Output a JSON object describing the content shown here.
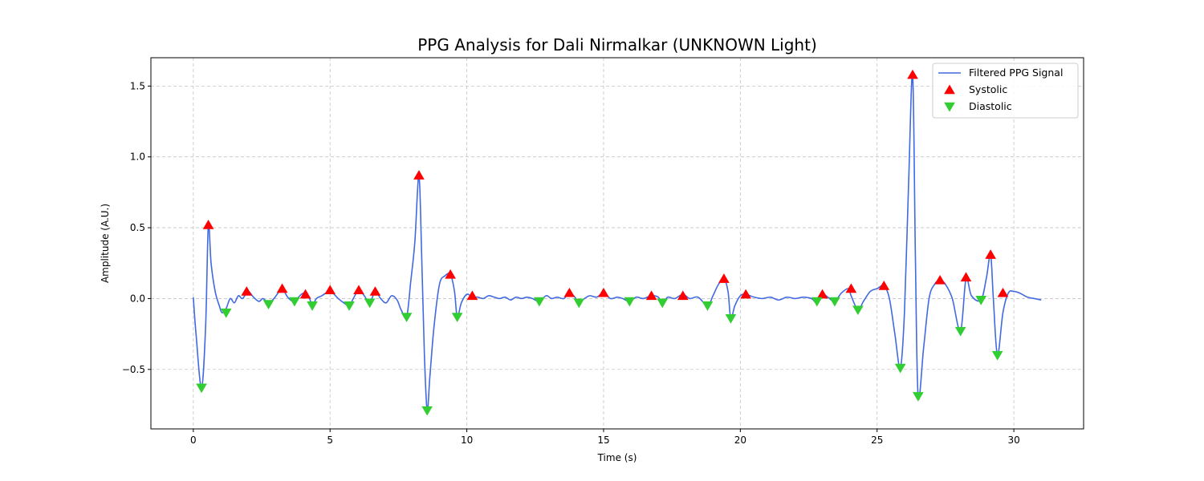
{
  "chart_data": {
    "type": "line",
    "title": "PPG Analysis for Dali Nirmalkar (UNKNOWN Light)",
    "xlabel": "Time (s)",
    "ylabel": "Amplitude (A.U.)",
    "xlim": [
      -1.55,
      32.55
    ],
    "ylim": [
      -0.92,
      1.7
    ],
    "xticks": [
      0,
      5,
      10,
      15,
      20,
      25,
      30
    ],
    "xtick_labels": [
      "0",
      "5",
      "10",
      "15",
      "20",
      "25",
      "30"
    ],
    "yticks": [
      -0.5,
      0.0,
      0.5,
      1.0,
      1.5
    ],
    "ytick_labels": [
      "−0.5",
      "0.0",
      "0.5",
      "1.0",
      "1.5"
    ],
    "grid": true,
    "legend_position": "top-right",
    "colors": {
      "signal": "#4169e1",
      "systolic": "#ff0000",
      "diastolic": "#32cd32"
    },
    "series": [
      {
        "name": "Filtered PPG Signal",
        "kind": "line",
        "x": [
          0.0,
          0.1,
          0.3,
          0.45,
          0.55,
          0.65,
          0.8,
          0.95,
          1.05,
          1.2,
          1.35,
          1.5,
          1.65,
          1.8,
          2.0,
          2.2,
          2.4,
          2.55,
          2.75,
          2.95,
          3.1,
          3.25,
          3.45,
          3.65,
          3.8,
          3.95,
          4.1,
          4.25,
          4.35,
          4.5,
          4.7,
          4.85,
          5.0,
          5.15,
          5.3,
          5.5,
          5.7,
          5.85,
          6.05,
          6.25,
          6.45,
          6.65,
          6.85,
          7.05,
          7.25,
          7.45,
          7.6,
          7.8,
          7.95,
          8.1,
          8.25,
          8.35,
          8.45,
          8.55,
          8.65,
          8.8,
          9.0,
          9.2,
          9.4,
          9.55,
          9.65,
          9.8,
          10.0,
          10.2,
          10.4,
          10.6,
          10.8,
          11.0,
          11.2,
          11.4,
          11.6,
          11.8,
          12.0,
          12.2,
          12.4,
          12.65,
          12.9,
          13.1,
          13.3,
          13.55,
          13.75,
          13.95,
          14.1,
          14.3,
          14.5,
          14.75,
          15.0,
          15.25,
          15.5,
          15.7,
          15.95,
          16.2,
          16.45,
          16.75,
          17.0,
          17.15,
          17.35,
          17.6,
          17.9,
          18.15,
          18.45,
          18.8,
          19.0,
          19.2,
          19.4,
          19.55,
          19.65,
          19.8,
          20.0,
          20.2,
          20.5,
          20.8,
          21.1,
          21.4,
          21.7,
          22.0,
          22.3,
          22.6,
          22.8,
          23.0,
          23.2,
          23.45,
          23.7,
          23.95,
          24.05,
          24.3,
          24.5,
          24.75,
          25.0,
          25.25,
          25.45,
          25.65,
          25.85,
          26.0,
          26.15,
          26.3,
          26.4,
          26.5,
          26.7,
          26.9,
          27.1,
          27.3,
          27.5,
          27.75,
          28.05,
          28.25,
          28.45,
          28.8,
          29.0,
          29.15,
          29.25,
          29.4,
          29.6,
          29.8,
          30.0,
          30.2,
          30.5,
          30.75,
          31.0
        ],
        "y": [
          0.01,
          -0.25,
          -0.63,
          -0.2,
          0.52,
          0.25,
          0.05,
          -0.05,
          -0.1,
          -0.07,
          0.0,
          -0.03,
          0.02,
          0.0,
          0.05,
          0.01,
          -0.02,
          0.0,
          -0.03,
          0.0,
          0.04,
          0.07,
          0.01,
          -0.02,
          0.0,
          0.03,
          0.04,
          0.0,
          -0.05,
          0.0,
          0.02,
          0.04,
          0.06,
          0.03,
          0.0,
          -0.03,
          -0.05,
          0.0,
          0.06,
          0.02,
          -0.03,
          0.05,
          0.0,
          -0.03,
          0.02,
          -0.01,
          -0.08,
          -0.13,
          0.12,
          0.4,
          0.87,
          0.3,
          -0.4,
          -0.79,
          -0.55,
          -0.2,
          0.1,
          0.16,
          0.17,
          0.05,
          -0.13,
          -0.03,
          0.03,
          0.01,
          0.01,
          0.0,
          0.02,
          0.01,
          0.0,
          0.01,
          -0.01,
          0.01,
          0.0,
          0.01,
          0.0,
          -0.02,
          0.02,
          0.0,
          0.01,
          0.0,
          0.04,
          0.01,
          -0.03,
          0.0,
          0.02,
          0.01,
          0.04,
          0.0,
          0.01,
          0.0,
          -0.02,
          0.01,
          0.0,
          0.02,
          0.01,
          -0.03,
          0.01,
          0.0,
          0.03,
          0.0,
          0.01,
          -0.05,
          0.02,
          0.1,
          0.14,
          0.05,
          -0.14,
          -0.05,
          0.02,
          0.03,
          0.01,
          0.0,
          0.01,
          -0.01,
          0.01,
          0.0,
          0.01,
          0.0,
          -0.03,
          0.03,
          0.01,
          -0.02,
          0.04,
          0.07,
          0.02,
          -0.08,
          -0.02,
          0.05,
          0.07,
          0.09,
          0.0,
          -0.25,
          -0.49,
          -0.1,
          0.8,
          1.58,
          0.3,
          -0.69,
          -0.35,
          0.0,
          0.1,
          0.13,
          0.1,
          0.0,
          -0.23,
          0.14,
          0.02,
          -0.01,
          0.15,
          0.31,
          0.0,
          -0.4,
          -0.1,
          0.04,
          0.05,
          0.04,
          0.01,
          0.0,
          -0.01
        ]
      },
      {
        "name": "Systolic",
        "kind": "marker",
        "marker": "triangle-up",
        "x": [
          0.55,
          1.95,
          3.25,
          4.1,
          5.0,
          6.05,
          6.65,
          8.25,
          9.4,
          10.2,
          13.75,
          15.0,
          16.75,
          17.9,
          19.4,
          20.2,
          23.0,
          24.05,
          25.25,
          26.3,
          27.3,
          28.25,
          29.15,
          29.6
        ],
        "y": [
          0.52,
          0.05,
          0.07,
          0.03,
          0.06,
          0.06,
          0.05,
          0.87,
          0.17,
          0.02,
          0.04,
          0.04,
          0.02,
          0.02,
          0.14,
          0.03,
          0.03,
          0.07,
          0.09,
          1.58,
          0.13,
          0.15,
          0.31,
          0.04
        ]
      },
      {
        "name": "Diastolic",
        "kind": "marker",
        "marker": "triangle-down",
        "x": [
          0.3,
          1.2,
          2.75,
          3.7,
          4.35,
          5.7,
          6.45,
          7.8,
          8.55,
          9.65,
          12.65,
          14.1,
          15.95,
          17.15,
          18.8,
          19.65,
          22.8,
          23.45,
          24.3,
          25.85,
          26.5,
          28.05,
          28.8,
          29.4
        ],
        "y": [
          -0.63,
          -0.1,
          -0.04,
          -0.02,
          -0.05,
          -0.05,
          -0.03,
          -0.13,
          -0.79,
          -0.13,
          -0.02,
          -0.03,
          -0.02,
          -0.03,
          -0.05,
          -0.14,
          -0.02,
          -0.02,
          -0.08,
          -0.49,
          -0.69,
          -0.23,
          -0.01,
          -0.4
        ]
      }
    ]
  }
}
